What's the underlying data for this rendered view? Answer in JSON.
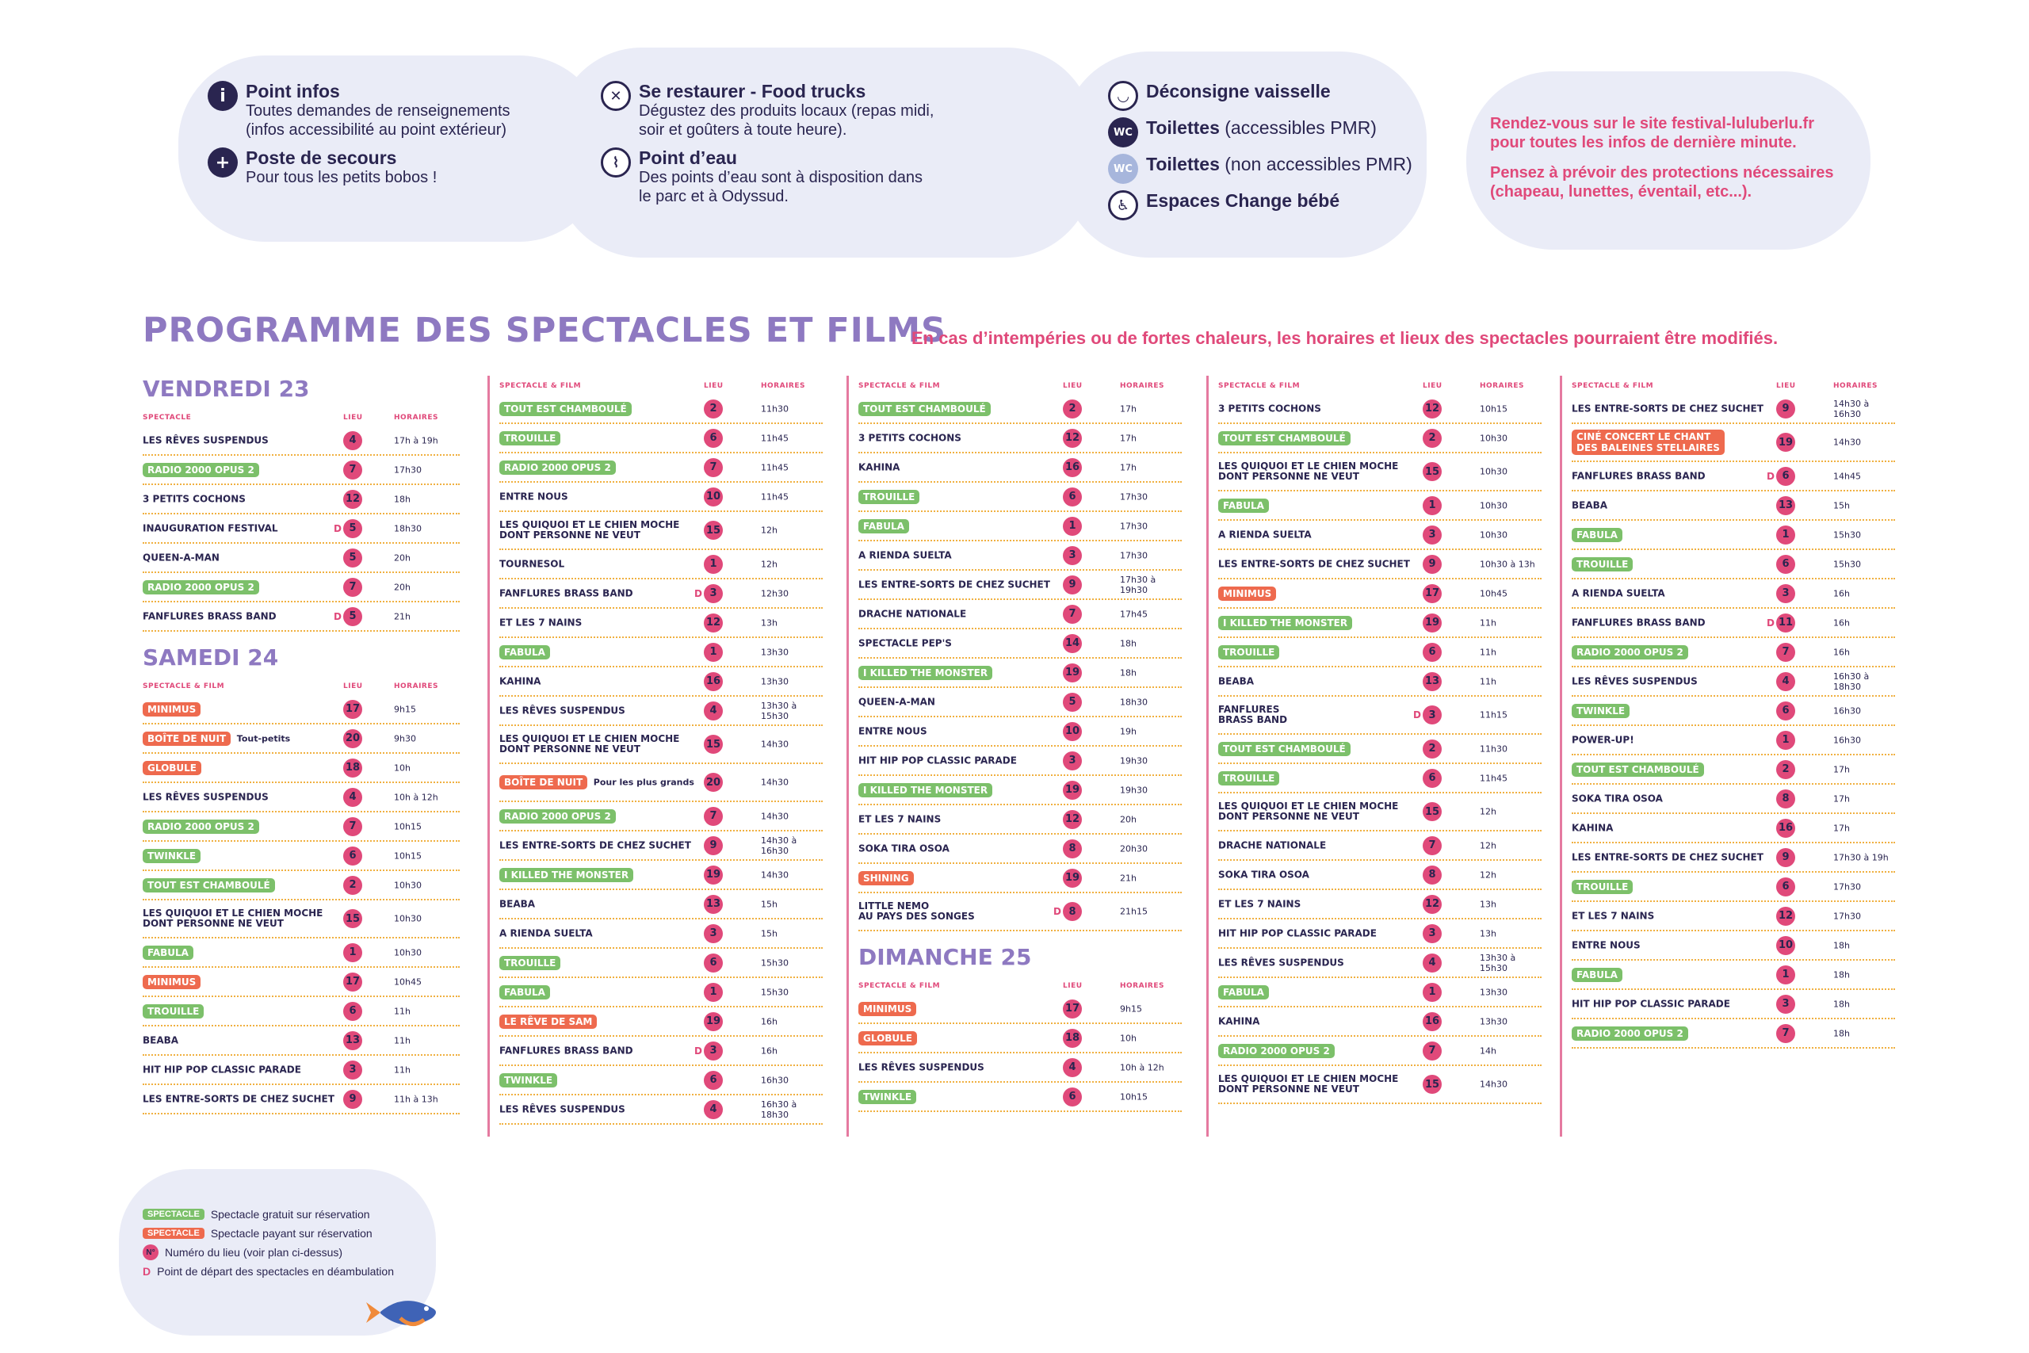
{
  "info": {
    "col1": [
      {
        "icon": "info-icon",
        "glyph": "i",
        "title": "Point infos",
        "desc": "Toutes demandes de renseignements\n(infos accessibilité au point extérieur)"
      },
      {
        "icon": "first-aid-icon",
        "glyph": "+",
        "title": "Poste de secours",
        "desc": "Pour tous les petits bobos !"
      }
    ],
    "col2": [
      {
        "icon": "cutlery-icon",
        "glyph": "✕",
        "title": "Se restaurer - Food trucks",
        "desc": "Dégustez des produits locaux (repas midi,\nsoir et goûters à toute heure)."
      },
      {
        "icon": "water-tap-icon",
        "glyph": "⌇",
        "title": "Point d’eau",
        "desc": "Des points d’eau sont à disposition dans\nle parc et à Odyssud."
      }
    ],
    "col3": [
      {
        "icon": "cup-icon",
        "glyph": "◡",
        "title": "Déconsigne vaisselle",
        "thin": ""
      },
      {
        "icon": "wc-icon",
        "glyph": "WC",
        "title": "Toilettes",
        "thin": " (accessibles PMR)"
      },
      {
        "icon": "wc-light-icon",
        "glyph": "WC",
        "title": "Toilettes",
        "thin": " (non accessibles PMR)"
      },
      {
        "icon": "baby-change-icon",
        "glyph": "♿",
        "title": "Espaces Change bébé",
        "thin": ""
      }
    ],
    "note1": "Rendez-vous sur le site festival-luluberlu.fr\npour toutes les infos de dernière minute.",
    "note2": "Pensez à prévoir des protections nécessaires\n(chapeau, lunettes, éventail, etc...)."
  },
  "program": {
    "title": "PROGRAMME DES SPECTACLES ET FILMS",
    "warning": "En cas d’intempéries ou de fortes chaleurs, les horaires et lieux des spectacles pourraient être modifiés.",
    "headers": {
      "spectacle": "SPECTACLE",
      "spectacle_film": "SPECTACLE & FILM",
      "lieu": "LIEU",
      "horaires": "HORAIRES"
    }
  },
  "columns": [
    {
      "sections": [
        {
          "day": "VENDREDI 23",
          "hdr": "spectacle",
          "rows": [
            {
              "n": "LES RÊVES SUSPENDUS",
              "l": "4",
              "h": "17h à 19h"
            },
            {
              "n": "RADIO 2000 OPUS 2",
              "t": "free",
              "l": "7",
              "h": "17h30"
            },
            {
              "n": "3 PETITS COCHONS",
              "l": "12",
              "h": "18h"
            },
            {
              "n": "INAUGURATION FESTIVAL",
              "d": "D",
              "l": "5",
              "h": "18h30"
            },
            {
              "n": "QUEEN-A-MAN",
              "l": "5",
              "h": "20h"
            },
            {
              "n": "RADIO 2000 OPUS 2",
              "t": "free",
              "l": "7",
              "h": "20h"
            },
            {
              "n": "FANFLURES BRASS BAND",
              "d": "D",
              "l": "5",
              "h": "21h"
            }
          ]
        },
        {
          "day": "SAMEDI 24",
          "hdr": "spectacle_film",
          "rows": [
            {
              "n": "MINIMUS",
              "t": "paid",
              "l": "17",
              "h": "9h15"
            },
            {
              "n": "BOÎTE DE NUIT",
              "t": "paid",
              "x": "Tout-petits",
              "l": "20",
              "h": "9h30"
            },
            {
              "n": "GLOBULE",
              "t": "paid",
              "l": "18",
              "h": "10h"
            },
            {
              "n": "LES RÊVES SUSPENDUS",
              "l": "4",
              "h": "10h à 12h"
            },
            {
              "n": "RADIO 2000 OPUS 2",
              "t": "free",
              "l": "7",
              "h": "10h15"
            },
            {
              "n": "TWINKLE",
              "t": "free",
              "l": "6",
              "h": "10h15"
            },
            {
              "n": "TOUT EST CHAMBOULÉ",
              "t": "free",
              "l": "2",
              "h": "10h30"
            },
            {
              "n": "LES QUIQUOI ET LE CHIEN MOCHE\nDONT PERSONNE NE VEUT",
              "l": "15",
              "h": "10h30",
              "tall": true
            },
            {
              "n": "FABULA",
              "t": "free",
              "l": "1",
              "h": "10h30"
            },
            {
              "n": "MINIMUS",
              "t": "paid",
              "l": "17",
              "h": "10h45"
            },
            {
              "n": "TROUILLE",
              "t": "free",
              "l": "6",
              "h": "11h"
            },
            {
              "n": "BEABA",
              "l": "13",
              "h": "11h"
            },
            {
              "n": "HIT HIP POP  CLASSIC PARADE",
              "l": "3",
              "h": "11h"
            },
            {
              "n": "LES ENTRE-SORTS DE CHEZ SUCHET",
              "l": "9",
              "h": "11h à 13h"
            }
          ]
        }
      ]
    },
    {
      "sections": [
        {
          "hdr": "spectacle_film",
          "rows": [
            {
              "n": "TOUT EST CHAMBOULÉ",
              "t": "free",
              "l": "2",
              "h": "11h30"
            },
            {
              "n": "TROUILLE",
              "t": "free",
              "l": "6",
              "h": "11h45"
            },
            {
              "n": "RADIO 2000 OPUS 2",
              "t": "free",
              "l": "7",
              "h": "11h45"
            },
            {
              "n": "ENTRE NOUS",
              "l": "10",
              "h": "11h45"
            },
            {
              "n": "LES QUIQUOI ET LE CHIEN MOCHE\nDONT PERSONNE NE VEUT",
              "l": "15",
              "h": "12h",
              "tall": true
            },
            {
              "n": "TOURNESOL",
              "l": "1",
              "h": "12h"
            },
            {
              "n": "FANFLURES BRASS BAND",
              "d": "D",
              "l": "3",
              "h": "12h30"
            },
            {
              "n": "ET LES 7 NAINS",
              "l": "12",
              "h": "13h"
            },
            {
              "n": "FABULA",
              "t": "free",
              "l": "1",
              "h": "13h30"
            },
            {
              "n": "KAHINA",
              "l": "16",
              "h": "13h30"
            },
            {
              "n": "LES RÊVES SUSPENDUS",
              "l": "4",
              "h": "13h30 à 15h30"
            },
            {
              "n": "LES QUIQUOI ET LE CHIEN MOCHE\nDONT PERSONNE NE VEUT",
              "l": "15",
              "h": "14h30",
              "tall": true
            },
            {
              "n": "BOÎTE DE NUIT",
              "t": "paid",
              "x": "Pour les plus grands",
              "l": "20",
              "h": "14h30",
              "tall": true
            },
            {
              "n": "RADIO 2000 OPUS 2",
              "t": "free",
              "l": "7",
              "h": "14h30"
            },
            {
              "n": "LES ENTRE-SORTS DE CHEZ SUCHET",
              "l": "9",
              "h": "14h30 à 16h30"
            },
            {
              "n": "I KILLED THE MONSTER",
              "t": "free",
              "l": "19",
              "h": "14h30"
            },
            {
              "n": "BEABA",
              "l": "13",
              "h": "15h"
            },
            {
              "n": "A RIENDA SUELTA",
              "l": "3",
              "h": "15h"
            },
            {
              "n": "TROUILLE",
              "t": "free",
              "l": "6",
              "h": "15h30"
            },
            {
              "n": "FABULA",
              "t": "free",
              "l": "1",
              "h": "15h30"
            },
            {
              "n": "LE RÊVE DE SAM",
              "t": "paid",
              "l": "19",
              "h": "16h"
            },
            {
              "n": "FANFLURES BRASS BAND",
              "d": "D",
              "l": "3",
              "h": "16h"
            },
            {
              "n": "TWINKLE",
              "t": "free",
              "l": "6",
              "h": "16h30"
            },
            {
              "n": "LES RÊVES SUSPENDUS",
              "l": "4",
              "h": "16h30 à 18h30"
            }
          ]
        }
      ]
    },
    {
      "sections": [
        {
          "hdr": "spectacle_film",
          "rows": [
            {
              "n": "TOUT EST CHAMBOULÉ",
              "t": "free",
              "l": "2",
              "h": "17h"
            },
            {
              "n": "3 PETITS COCHONS",
              "l": "12",
              "h": "17h"
            },
            {
              "n": "KAHINA",
              "l": "16",
              "h": "17h"
            },
            {
              "n": "TROUILLE",
              "t": "free",
              "l": "6",
              "h": "17h30"
            },
            {
              "n": "FABULA",
              "t": "free",
              "l": "1",
              "h": "17h30"
            },
            {
              "n": "A RIENDA SUELTA",
              "l": "3",
              "h": "17h30"
            },
            {
              "n": "LES ENTRE-SORTS DE CHEZ SUCHET",
              "l": "9",
              "h": "17h30 à 19h30"
            },
            {
              "n": "DRACHE NATIONALE",
              "l": "7",
              "h": "17h45"
            },
            {
              "n": "SPECTACLE PEP'S",
              "l": "14",
              "h": "18h"
            },
            {
              "n": "I KILLED THE MONSTER",
              "t": "free",
              "l": "19",
              "h": "18h"
            },
            {
              "n": "QUEEN-A-MAN",
              "l": "5",
              "h": "18h30"
            },
            {
              "n": "ENTRE NOUS",
              "l": "10",
              "h": "19h"
            },
            {
              "n": "HIT HIP POP  CLASSIC PARADE",
              "l": "3",
              "h": "19h30"
            },
            {
              "n": "I KILLED THE MONSTER",
              "t": "free",
              "l": "19",
              "h": "19h30"
            },
            {
              "n": "ET LES 7 NAINS",
              "l": "12",
              "h": "20h"
            },
            {
              "n": "SOKA TIRA OSOA",
              "l": "8",
              "h": "20h30"
            },
            {
              "n": "SHINING",
              "t": "paid",
              "l": "19",
              "h": "21h"
            },
            {
              "n": "LITTLE NEMO\nAU PAYS DES SONGES",
              "d": "D",
              "l": "8",
              "h": "21h15",
              "tall": true
            }
          ]
        },
        {
          "day": "DIMANCHE 25",
          "hdr": "spectacle_film",
          "rows": [
            {
              "n": "MINIMUS",
              "t": "paid",
              "l": "17",
              "h": "9h15"
            },
            {
              "n": "GLOBULE",
              "t": "paid",
              "l": "18",
              "h": "10h"
            },
            {
              "n": "LES RÊVES SUSPENDUS",
              "l": "4",
              "h": "10h à 12h"
            },
            {
              "n": "TWINKLE",
              "t": "free",
              "l": "6",
              "h": "10h15"
            }
          ]
        }
      ]
    },
    {
      "sections": [
        {
          "hdr": "spectacle_film",
          "rows": [
            {
              "n": "3 PETITS COCHONS",
              "l": "12",
              "h": "10h15"
            },
            {
              "n": "TOUT EST CHAMBOULÉ",
              "t": "free",
              "l": "2",
              "h": "10h30"
            },
            {
              "n": "LES QUIQUOI ET LE CHIEN MOCHE\nDONT PERSONNE NE VEUT",
              "l": "15",
              "h": "10h30",
              "tall": true
            },
            {
              "n": "FABULA",
              "t": "free",
              "l": "1",
              "h": "10h30"
            },
            {
              "n": "A RIENDA SUELTA",
              "l": "3",
              "h": "10h30"
            },
            {
              "n": "LES ENTRE-SORTS DE CHEZ SUCHET",
              "l": "9",
              "h": "10h30 à 13h"
            },
            {
              "n": "MINIMUS",
              "t": "paid",
              "l": "17",
              "h": "10h45"
            },
            {
              "n": "I KILLED THE MONSTER",
              "t": "free",
              "l": "19",
              "h": "11h"
            },
            {
              "n": "TROUILLE",
              "t": "free",
              "l": "6",
              "h": "11h"
            },
            {
              "n": "BEABA",
              "l": "13",
              "h": "11h"
            },
            {
              "n": "FANFLURES\nBRASS BAND",
              "d": "D",
              "l": "3",
              "h": "11h15",
              "tall": true
            },
            {
              "n": "TOUT EST CHAMBOULÉ",
              "t": "free",
              "l": "2",
              "h": "11h30"
            },
            {
              "n": "TROUILLE",
              "t": "free",
              "l": "6",
              "h": "11h45"
            },
            {
              "n": "LES QUIQUOI ET LE CHIEN MOCHE\nDONT PERSONNE NE VEUT",
              "l": "15",
              "h": "12h",
              "tall": true
            },
            {
              "n": "DRACHE NATIONALE",
              "l": "7",
              "h": "12h"
            },
            {
              "n": "SOKA TIRA OSOA",
              "l": "8",
              "h": "12h"
            },
            {
              "n": "ET LES 7 NAINS",
              "l": "12",
              "h": "13h"
            },
            {
              "n": "HIT HIP POP  CLASSIC PARADE",
              "l": "3",
              "h": "13h"
            },
            {
              "n": "LES RÊVES SUSPENDUS",
              "l": "4",
              "h": "13h30 à 15h30"
            },
            {
              "n": "FABULA",
              "t": "free",
              "l": "1",
              "h": "13h30"
            },
            {
              "n": "KAHINA",
              "l": "16",
              "h": "13h30"
            },
            {
              "n": "RADIO 2000 OPUS 2",
              "t": "free",
              "l": "7",
              "h": "14h"
            },
            {
              "n": "LES QUIQUOI ET LE CHIEN MOCHE\nDONT PERSONNE NE VEUT",
              "l": "15",
              "h": "14h30",
              "tall": true
            }
          ]
        }
      ]
    },
    {
      "sections": [
        {
          "hdr": "spectacle_film",
          "rows": [
            {
              "n": "LES ENTRE-SORTS DE CHEZ SUCHET",
              "l": "9",
              "h": "14h30 à 16h30"
            },
            {
              "n": "CINÉ CONCERT LE CHANT\nDES BALEINES STELLAIRES",
              "t": "paid",
              "l": "19",
              "h": "14h30",
              "tall": true
            },
            {
              "n": "FANFLURES BRASS BAND",
              "d": "D",
              "l": "6",
              "h": "14h45"
            },
            {
              "n": "BEABA",
              "l": "13",
              "h": "15h"
            },
            {
              "n": "FABULA",
              "t": "free",
              "l": "1",
              "h": "15h30"
            },
            {
              "n": "TROUILLE",
              "t": "free",
              "l": "6",
              "h": "15h30"
            },
            {
              "n": "A RIENDA SUELTA",
              "l": "3",
              "h": "16h"
            },
            {
              "n": "FANFLURES BRASS BAND",
              "d": "D",
              "l": "11",
              "h": "16h"
            },
            {
              "n": "RADIO 2000 OPUS 2",
              "t": "free",
              "l": "7",
              "h": "16h"
            },
            {
              "n": "LES RÊVES SUSPENDUS",
              "l": "4",
              "h": "16h30 à 18h30"
            },
            {
              "n": "TWINKLE",
              "t": "free",
              "l": "6",
              "h": "16h30"
            },
            {
              "n": "POWER-UP!",
              "l": "1",
              "h": "16h30"
            },
            {
              "n": "TOUT EST CHAMBOULÉ",
              "t": "free",
              "l": "2",
              "h": "17h"
            },
            {
              "n": "SOKA TIRA OSOA",
              "l": "8",
              "h": "17h"
            },
            {
              "n": "KAHINA",
              "l": "16",
              "h": "17h"
            },
            {
              "n": "LES ENTRE-SORTS DE CHEZ SUCHET",
              "l": "9",
              "h": "17h30 à 19h"
            },
            {
              "n": "TROUILLE",
              "t": "free",
              "l": "6",
              "h": "17h30"
            },
            {
              "n": "ET LES 7 NAINS",
              "l": "12",
              "h": "17h30"
            },
            {
              "n": "ENTRE NOUS",
              "l": "10",
              "h": "18h"
            },
            {
              "n": "FABULA",
              "t": "free",
              "l": "1",
              "h": "18h"
            },
            {
              "n": "HIT HIP POP  CLASSIC PARADE",
              "l": "3",
              "h": "18h"
            },
            {
              "n": "RADIO 2000 OPUS 2",
              "t": "free",
              "l": "7",
              "h": "18h"
            }
          ]
        }
      ]
    }
  ],
  "legend": {
    "free_tag": "SPECTACLE",
    "free_desc": "Spectacle gratuit sur réservation",
    "paid_tag": "SPECTACLE",
    "paid_desc": "Spectacle payant sur réservation",
    "num_tag": "N°",
    "num_desc": "Numéro du lieu (voir plan ci-dessus)",
    "d_tag": "D",
    "d_desc": "Point de départ des spectacles en déambulation"
  },
  "colors": {
    "free": "#7cc06a",
    "paid": "#ee6a4e",
    "pink": "#e0497a",
    "purple": "#8e79c1",
    "navy": "#2a2550"
  }
}
